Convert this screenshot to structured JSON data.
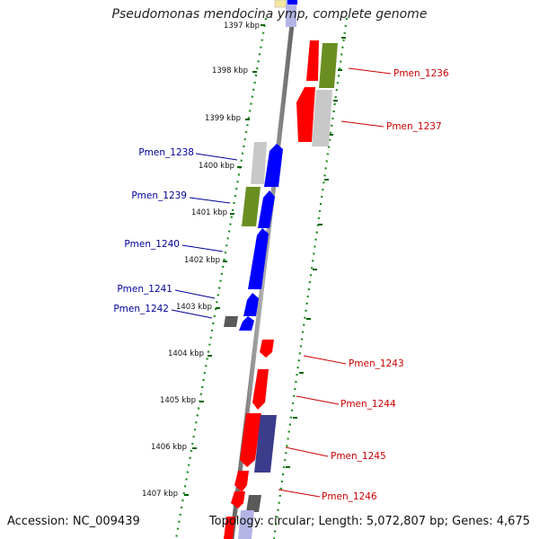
{
  "title": "Pseudomonas mendocina ymp, complete genome",
  "accession": "Accession: NC_009439",
  "summary": "Topology: circular; Length: 5,072,807 bp; Genes: 4,675",
  "colors": {
    "red": "#ff0000",
    "green": "#6b8e23",
    "gray": "#c8c8c8",
    "dark_gray": "#5a5a5a",
    "blue": "#0000ff",
    "purple": "#3c3c8c",
    "yellow": "#f5e6a0",
    "lavender": "#b4b4e6",
    "left_label": "#000099",
    "right_label": "#cc0000",
    "tick": "#006400",
    "backbone": "#808080"
  },
  "kbp_markers": [
    "1397 kbp",
    "1398 kbp",
    "1399 kbp",
    "1400 kbp",
    "1401 kbp",
    "1402 kbp",
    "1403 kbp",
    "1404 kbp",
    "1405 kbp",
    "1406 kbp",
    "1407 kbp"
  ],
  "left_labels": [
    "Pmen_1238",
    "Pmen_1239",
    "Pmen_1240",
    "Pmen_1241",
    "Pmen_1242"
  ],
  "right_labels": [
    "Pmen_1236",
    "Pmen_1237",
    "Pmen_1243",
    "Pmen_1244",
    "Pmen_1245",
    "Pmen_1246"
  ]
}
